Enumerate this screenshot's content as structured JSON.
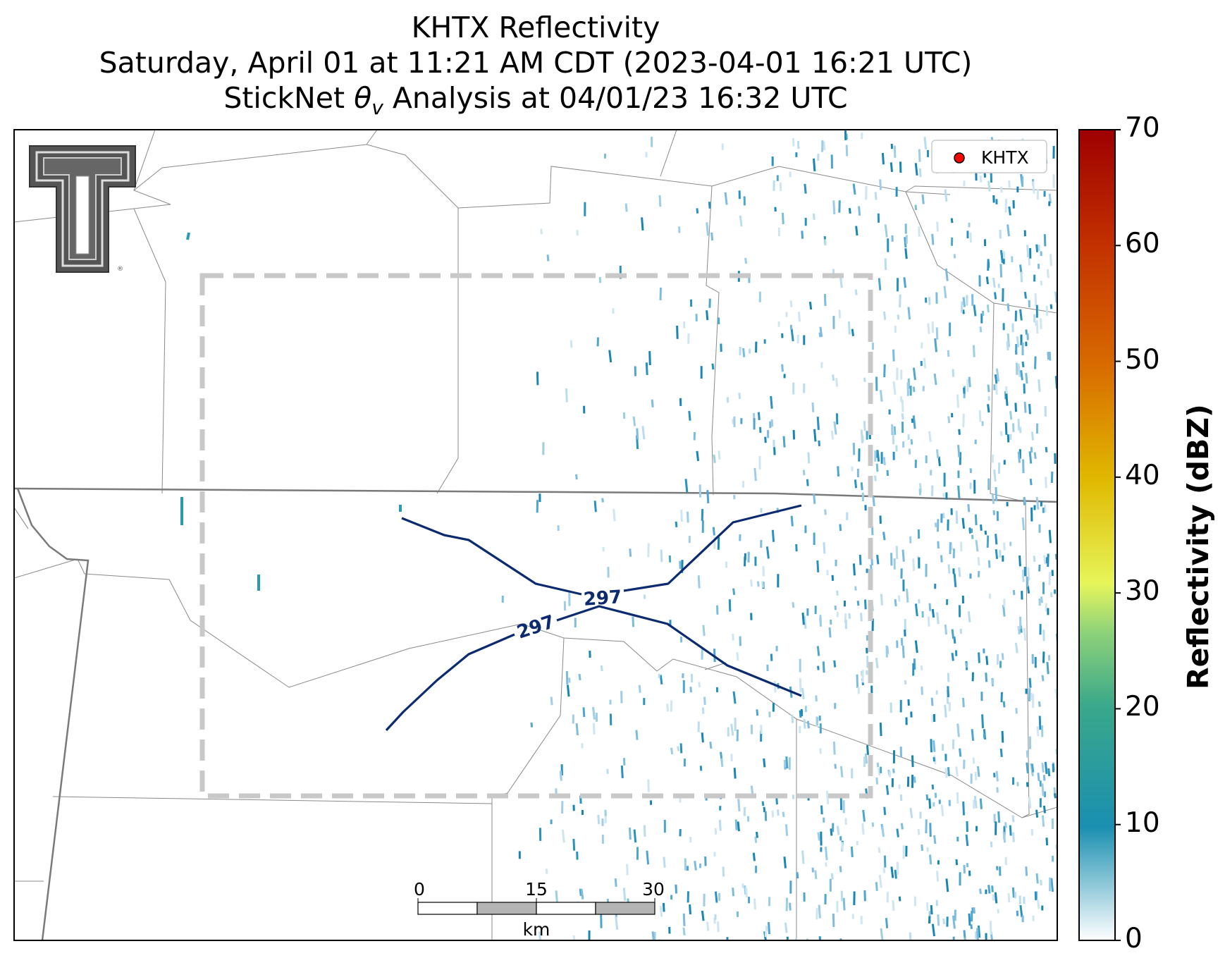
{
  "title": {
    "line1": "KHTX Reflectivity",
    "line2": "Saturday, April 01 at 11:21 AM CDT (2023-04-01 16:21 UTC)",
    "line3_prefix": "StickNet ",
    "line3_symbol": "θ",
    "line3_sub": "v",
    "line3_suffix": " Analysis at 04/01/23 16:32 UTC"
  },
  "legend": {
    "label": "KHTX",
    "marker_color": "#ff0000"
  },
  "logo": {
    "name": "texas-tech-double-t-logo",
    "mark": "®"
  },
  "contours": {
    "label": "297",
    "color": "#0b2a6f"
  },
  "scale_bar": {
    "ticks": [
      "0",
      "15",
      "30"
    ],
    "unit": "km"
  },
  "colorbar": {
    "label": "Reflectivity (dBZ)",
    "ticks": [
      "0",
      "10",
      "20",
      "30",
      "40",
      "50",
      "60",
      "70"
    ],
    "colors": [
      "#ffffff",
      "#1a8fb0",
      "#3aa88a",
      "#8ed27a",
      "#e6f55a",
      "#e0b800",
      "#d86a00",
      "#c23000",
      "#9e0000"
    ]
  },
  "analysis_box": {
    "style": "dashed",
    "color": "#c8c8c8"
  }
}
